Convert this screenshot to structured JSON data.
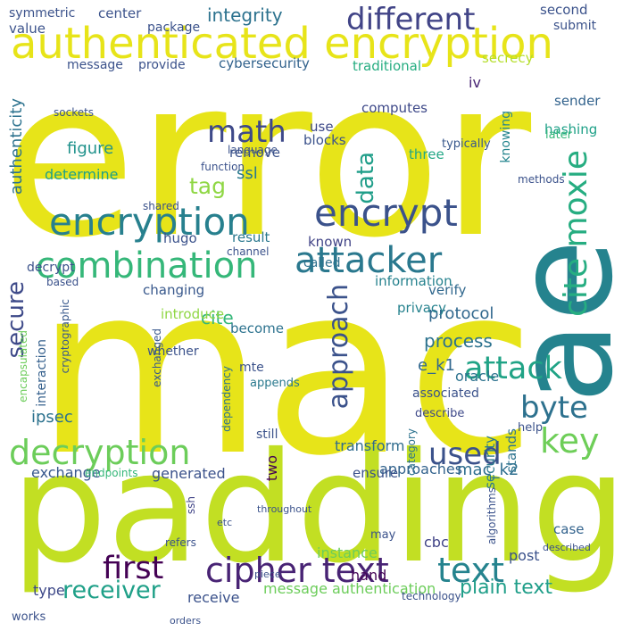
{
  "words": [
    {
      "text": "error",
      "color": "#e7e419"
    },
    {
      "text": "mac",
      "color": "#e7e419"
    },
    {
      "text": "padding",
      "color": "#c2df23"
    },
    {
      "text": "ae",
      "color": "#25838e"
    },
    {
      "text": "authenticated encryption",
      "color": "#e7e419"
    },
    {
      "text": "encryption",
      "color": "#27808e"
    },
    {
      "text": "combination",
      "color": "#35b779"
    },
    {
      "text": "attacker",
      "color": "#2a788e"
    },
    {
      "text": "decryption",
      "color": "#6ccd5a"
    },
    {
      "text": "cipher text",
      "color": "#482374"
    },
    {
      "text": "text",
      "color": "#25838e"
    },
    {
      "text": "first",
      "color": "#440154"
    },
    {
      "text": "receiver",
      "color": "#1fa088"
    },
    {
      "text": "different",
      "color": "#414487"
    },
    {
      "text": "encrypt",
      "color": "#3b528b"
    },
    {
      "text": "attack",
      "color": "#20a386"
    },
    {
      "text": "cite moxie",
      "color": "#26ad81"
    },
    {
      "text": "byte",
      "color": "#2d718e"
    },
    {
      "text": "key",
      "color": "#6ece58"
    },
    {
      "text": "used",
      "color": "#3b528b"
    },
    {
      "text": "approach",
      "color": "#3b528b"
    },
    {
      "text": "math",
      "color": "#3e4989"
    },
    {
      "text": "data",
      "color": "#1f9e89"
    },
    {
      "text": "secure",
      "color": "#3e4a89"
    },
    {
      "text": "tag",
      "color": "#8fd744"
    },
    {
      "text": "integrity",
      "color": "#2c728e"
    },
    {
      "text": "plain text",
      "color": "#1f9e89"
    },
    {
      "text": "authenticity",
      "color": "#2c728e"
    },
    {
      "text": "ssl",
      "color": "#29798e"
    },
    {
      "text": "figure",
      "color": "#20928c"
    },
    {
      "text": "process",
      "color": "#2c728e"
    },
    {
      "text": "e_k1",
      "color": "#31688e"
    },
    {
      "text": "mac_k2",
      "color": "#2e6e8e"
    },
    {
      "text": "cite",
      "color": "#35b779"
    },
    {
      "text": "protocol",
      "color": "#31688e"
    },
    {
      "text": "oracle",
      "color": "#2c728e"
    },
    {
      "text": "transform",
      "color": "#2f6c8e"
    },
    {
      "text": "approaches",
      "color": "#33638d"
    },
    {
      "text": "exchange",
      "color": "#38588c"
    },
    {
      "text": "generated",
      "color": "#3b528b"
    },
    {
      "text": "two",
      "color": "#440154"
    },
    {
      "text": "message authentication",
      "color": "#6ccd5a"
    },
    {
      "text": "security",
      "color": "#29798e"
    },
    {
      "text": "receive",
      "color": "#3b528b"
    },
    {
      "text": "type",
      "color": "#3e4989"
    },
    {
      "text": "instance",
      "color": "#6ccd5a"
    },
    {
      "text": "cbc",
      "color": "#414487"
    },
    {
      "text": "hand",
      "color": "#450457"
    },
    {
      "text": "post",
      "color": "#3b528b"
    },
    {
      "text": "case",
      "color": "#33638d"
    },
    {
      "text": "stands",
      "color": "#2c728e"
    },
    {
      "text": "ssh",
      "color": "#414487"
    },
    {
      "text": "ipsec",
      "color": "#2c728e"
    },
    {
      "text": "interaction",
      "color": "#35608d"
    },
    {
      "text": "cryptographic",
      "color": "#38588c"
    },
    {
      "text": "encapsulated",
      "color": "#6ccd5a"
    },
    {
      "text": "provide",
      "color": "#3b528b"
    },
    {
      "text": "cybersecurity",
      "color": "#33638d"
    },
    {
      "text": "traditional",
      "color": "#26ad81"
    },
    {
      "text": "secrecy",
      "color": "#b5de2b"
    },
    {
      "text": "iv",
      "color": "#482475"
    },
    {
      "text": "sender",
      "color": "#33638d"
    },
    {
      "text": "hashing",
      "color": "#1fa188"
    },
    {
      "text": "typically",
      "color": "#38588c"
    },
    {
      "text": "later",
      "color": "#35b779"
    },
    {
      "text": "three",
      "color": "#22a785"
    },
    {
      "text": "knowing",
      "color": "#25858e"
    },
    {
      "text": "blocks",
      "color": "#3b528b"
    },
    {
      "text": "use",
      "color": "#3e4989"
    },
    {
      "text": "computes",
      "color": "#3e4989"
    },
    {
      "text": "verify",
      "color": "#31688e"
    },
    {
      "text": "called",
      "color": "#2d708e"
    },
    {
      "text": "known",
      "color": "#414487"
    },
    {
      "text": "result",
      "color": "#2a788e"
    },
    {
      "text": "hugo",
      "color": "#3b528b"
    },
    {
      "text": "remove",
      "color": "#3b528b"
    },
    {
      "text": "determine",
      "color": "#1fa088"
    },
    {
      "text": "decrypt",
      "color": "#3b528b"
    },
    {
      "text": "changing",
      "color": "#38588c"
    },
    {
      "text": "information",
      "color": "#26828e"
    },
    {
      "text": "privacy",
      "color": "#26828e"
    },
    {
      "text": "introduce",
      "color": "#8fd744"
    },
    {
      "text": "become",
      "color": "#2c728e"
    },
    {
      "text": "whether",
      "color": "#3b528b"
    },
    {
      "text": "exchanged",
      "color": "#38588c"
    },
    {
      "text": "mte",
      "color": "#3b528b"
    },
    {
      "text": "appends",
      "color": "#29798e"
    },
    {
      "text": "dependency",
      "color": "#2c728e"
    },
    {
      "text": "associated",
      "color": "#3b528b"
    },
    {
      "text": "describe",
      "color": "#3e4989"
    },
    {
      "text": "help",
      "color": "#3b528b"
    },
    {
      "text": "category",
      "color": "#2c728e"
    },
    {
      "text": "ensure",
      "color": "#3b528b"
    },
    {
      "text": "may",
      "color": "#3b528b"
    },
    {
      "text": "still",
      "color": "#3b528b"
    },
    {
      "text": "works",
      "color": "#3b528b"
    },
    {
      "text": "refers",
      "color": "#3b528b"
    },
    {
      "text": "piece",
      "color": "#3b528b"
    },
    {
      "text": "throughout",
      "color": "#3b528b"
    },
    {
      "text": "technology",
      "color": "#3b528b"
    },
    {
      "text": "endpoints",
      "color": "#35b779"
    },
    {
      "text": "algorithms",
      "color": "#3b528b"
    },
    {
      "text": "described",
      "color": "#3b528b"
    },
    {
      "text": "symmetric",
      "color": "#3b528b"
    },
    {
      "text": "center",
      "color": "#3b528b"
    },
    {
      "text": "package",
      "color": "#3b528b"
    },
    {
      "text": "value",
      "color": "#3b528b"
    },
    {
      "text": "message",
      "color": "#3b528b"
    },
    {
      "text": "second",
      "color": "#3b528b"
    },
    {
      "text": "submit",
      "color": "#3b528b"
    },
    {
      "text": "sockets",
      "color": "#3b528b"
    },
    {
      "text": "shared",
      "color": "#3b528b"
    },
    {
      "text": "based",
      "color": "#3b528b"
    },
    {
      "text": "channel",
      "color": "#3b528b"
    },
    {
      "text": "language",
      "color": "#3b528b"
    },
    {
      "text": "function",
      "color": "#3b528b"
    },
    {
      "text": "etc",
      "color": "#3b528b"
    },
    {
      "text": "orders",
      "color": "#3b528b"
    },
    {
      "text": "methods",
      "color": "#3b528b"
    }
  ]
}
